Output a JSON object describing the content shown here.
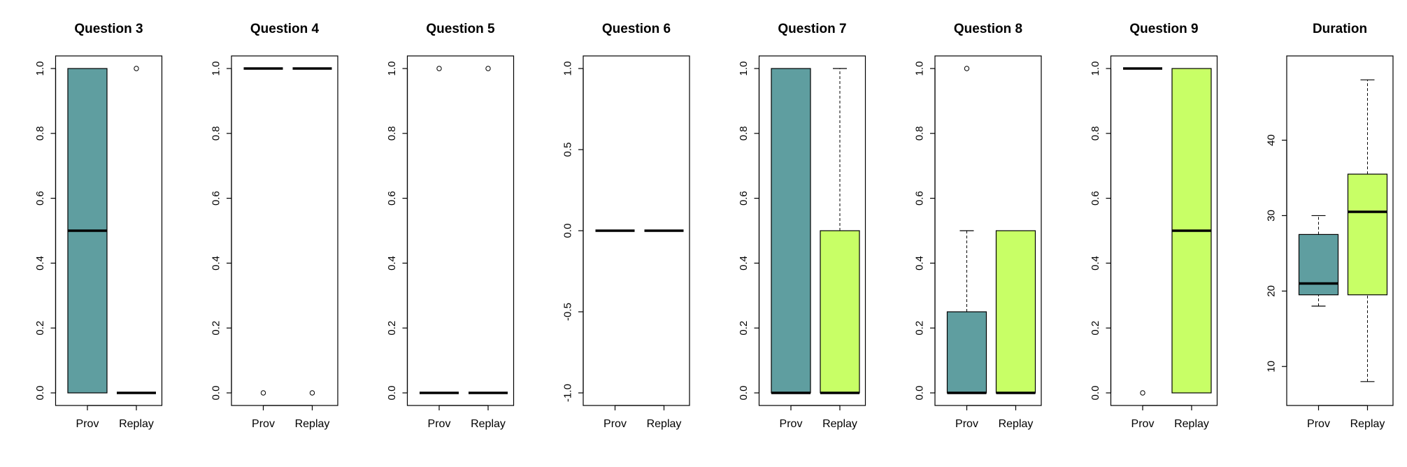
{
  "colors": {
    "prov": "#5f9ea0",
    "replay": "#c8ff66",
    "stroke": "#000000",
    "background": "#ffffff"
  },
  "chart_data": [
    {
      "type": "boxplot",
      "title": "Question 3",
      "categories": [
        "Prov",
        "Replay"
      ],
      "ylim": [
        0,
        1
      ],
      "yticks": [
        {
          "v": 0,
          "label": "0.0"
        },
        {
          "v": 0.2,
          "label": "0.2"
        },
        {
          "v": 0.4,
          "label": "0.4"
        },
        {
          "v": 0.6,
          "label": "0.6"
        },
        {
          "v": 0.8,
          "label": "0.8"
        },
        {
          "v": 1,
          "label": "1.0"
        }
      ],
      "boxes": [
        {
          "category": "Prov",
          "min": 0,
          "q1": 0,
          "median": 0.5,
          "q3": 1,
          "max": 1,
          "outliers": []
        },
        {
          "category": "Replay",
          "min": 0,
          "q1": 0,
          "median": 0,
          "q3": 0,
          "max": 0,
          "outliers": [
            1
          ]
        }
      ]
    },
    {
      "type": "boxplot",
      "title": "Question 4",
      "categories": [
        "Prov",
        "Replay"
      ],
      "ylim": [
        0,
        1
      ],
      "yticks": [
        {
          "v": 0,
          "label": "0.0"
        },
        {
          "v": 0.2,
          "label": "0.2"
        },
        {
          "v": 0.4,
          "label": "0.4"
        },
        {
          "v": 0.6,
          "label": "0.6"
        },
        {
          "v": 0.8,
          "label": "0.8"
        },
        {
          "v": 1,
          "label": "1.0"
        }
      ],
      "boxes": [
        {
          "category": "Prov",
          "min": 1,
          "q1": 1,
          "median": 1,
          "q3": 1,
          "max": 1,
          "outliers": [
            0
          ]
        },
        {
          "category": "Replay",
          "min": 1,
          "q1": 1,
          "median": 1,
          "q3": 1,
          "max": 1,
          "outliers": [
            0
          ]
        }
      ]
    },
    {
      "type": "boxplot",
      "title": "Question 5",
      "categories": [
        "Prov",
        "Replay"
      ],
      "ylim": [
        0,
        1
      ],
      "yticks": [
        {
          "v": 0,
          "label": "0.0"
        },
        {
          "v": 0.2,
          "label": "0.2"
        },
        {
          "v": 0.4,
          "label": "0.4"
        },
        {
          "v": 0.6,
          "label": "0.6"
        },
        {
          "v": 0.8,
          "label": "0.8"
        },
        {
          "v": 1,
          "label": "1.0"
        }
      ],
      "boxes": [
        {
          "category": "Prov",
          "min": 0,
          "q1": 0,
          "median": 0,
          "q3": 0,
          "max": 0,
          "outliers": [
            1
          ]
        },
        {
          "category": "Replay",
          "min": 0,
          "q1": 0,
          "median": 0,
          "q3": 0,
          "max": 0,
          "outliers": [
            1
          ]
        }
      ]
    },
    {
      "type": "boxplot",
      "title": "Question 6",
      "categories": [
        "Prov",
        "Replay"
      ],
      "ylim": [
        -1,
        1
      ],
      "yticks": [
        {
          "v": -1,
          "label": "-1.0"
        },
        {
          "v": -0.5,
          "label": "-0.5"
        },
        {
          "v": 0,
          "label": "0.0"
        },
        {
          "v": 0.5,
          "label": "0.5"
        },
        {
          "v": 1,
          "label": "1.0"
        }
      ],
      "boxes": [
        {
          "category": "Prov",
          "min": 0,
          "q1": 0,
          "median": 0,
          "q3": 0,
          "max": 0,
          "outliers": []
        },
        {
          "category": "Replay",
          "min": 0,
          "q1": 0,
          "median": 0,
          "q3": 0,
          "max": 0,
          "outliers": []
        }
      ]
    },
    {
      "type": "boxplot",
      "title": "Question 7",
      "categories": [
        "Prov",
        "Replay"
      ],
      "ylim": [
        0,
        1
      ],
      "yticks": [
        {
          "v": 0,
          "label": "0.0"
        },
        {
          "v": 0.2,
          "label": "0.2"
        },
        {
          "v": 0.4,
          "label": "0.4"
        },
        {
          "v": 0.6,
          "label": "0.6"
        },
        {
          "v": 0.8,
          "label": "0.8"
        },
        {
          "v": 1,
          "label": "1.0"
        }
      ],
      "boxes": [
        {
          "category": "Prov",
          "min": 0,
          "q1": 0,
          "median": 0,
          "q3": 1,
          "max": 1,
          "outliers": []
        },
        {
          "category": "Replay",
          "min": 0,
          "q1": 0,
          "median": 0,
          "q3": 0.5,
          "max": 1,
          "outliers": []
        }
      ]
    },
    {
      "type": "boxplot",
      "title": "Question 8",
      "categories": [
        "Prov",
        "Replay"
      ],
      "ylim": [
        0,
        1
      ],
      "yticks": [
        {
          "v": 0,
          "label": "0.0"
        },
        {
          "v": 0.2,
          "label": "0.2"
        },
        {
          "v": 0.4,
          "label": "0.4"
        },
        {
          "v": 0.6,
          "label": "0.6"
        },
        {
          "v": 0.8,
          "label": "0.8"
        },
        {
          "v": 1,
          "label": "1.0"
        }
      ],
      "boxes": [
        {
          "category": "Prov",
          "min": 0,
          "q1": 0,
          "median": 0,
          "q3": 0.25,
          "max": 0.5,
          "outliers": [
            1
          ]
        },
        {
          "category": "Replay",
          "min": 0,
          "q1": 0,
          "median": 0,
          "q3": 0.5,
          "max": 0.5,
          "outliers": []
        }
      ]
    },
    {
      "type": "boxplot",
      "title": "Question 9",
      "categories": [
        "Prov",
        "Replay"
      ],
      "ylim": [
        0,
        1
      ],
      "yticks": [
        {
          "v": 0,
          "label": "0.0"
        },
        {
          "v": 0.2,
          "label": "0.2"
        },
        {
          "v": 0.4,
          "label": "0.4"
        },
        {
          "v": 0.6,
          "label": "0.6"
        },
        {
          "v": 0.8,
          "label": "0.8"
        },
        {
          "v": 1,
          "label": "1.0"
        }
      ],
      "boxes": [
        {
          "category": "Prov",
          "min": 1,
          "q1": 1,
          "median": 1,
          "q3": 1,
          "max": 1,
          "outliers": [
            0
          ]
        },
        {
          "category": "Replay",
          "min": 0,
          "q1": 0,
          "median": 0.5,
          "q3": 1,
          "max": 1,
          "outliers": []
        }
      ]
    },
    {
      "type": "boxplot",
      "title": "Duration",
      "categories": [
        "Prov",
        "Replay"
      ],
      "ylim": [
        6.5,
        49.5
      ],
      "yticks": [
        {
          "v": 10,
          "label": "10"
        },
        {
          "v": 20,
          "label": "20"
        },
        {
          "v": 30,
          "label": "30"
        },
        {
          "v": 40,
          "label": "40"
        }
      ],
      "boxes": [
        {
          "category": "Prov",
          "min": 18,
          "q1": 19.5,
          "median": 21,
          "q3": 27.5,
          "max": 30,
          "outliers": []
        },
        {
          "category": "Replay",
          "min": 8,
          "q1": 19.5,
          "median": 30.5,
          "q3": 35.5,
          "max": 48,
          "outliers": []
        }
      ]
    }
  ]
}
